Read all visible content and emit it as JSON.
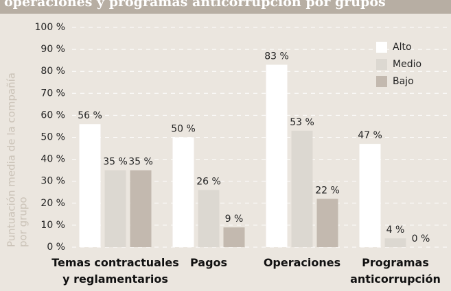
{
  "chart_data": {
    "type": "bar",
    "title": "operaciones y programas anticorrupción por grupos",
    "y_label": [
      "Puntuación media de la compañía",
      "por grupo"
    ],
    "categories": [
      "Temas contractuales\ny reglamentarios",
      "Pagos",
      "Operaciones",
      "Programas\nanticorrupción"
    ],
    "series": [
      {
        "name": "Alto",
        "color": "#ffffff",
        "values": [
          56,
          50,
          83,
          47
        ],
        "value_labels": [
          "56 %",
          "50 %",
          "83 %",
          "47 %"
        ]
      },
      {
        "name": "Medio",
        "color": "#dcd8d1",
        "values": [
          35,
          26,
          53,
          4
        ],
        "value_labels": [
          "35 %",
          "26 %",
          "53 %",
          "4 %"
        ]
      },
      {
        "name": "Bajo",
        "color": "#c3b9af",
        "values": [
          35,
          9,
          22,
          0
        ],
        "value_labels": [
          "35 %",
          "9 %",
          "22 %",
          "0 %"
        ]
      }
    ],
    "ylim": [
      0,
      100
    ],
    "yticks": [
      {
        "value": 0,
        "label": "0 %"
      },
      {
        "value": 10,
        "label": "10 %"
      },
      {
        "value": 20,
        "label": "20 %"
      },
      {
        "value": 30,
        "label": "30 %"
      },
      {
        "value": 40,
        "label": "40 %"
      },
      {
        "value": 50,
        "label": "50 %"
      },
      {
        "value": 60,
        "label": "60 %"
      },
      {
        "value": 70,
        "label": "70 %"
      },
      {
        "value": 80,
        "label": "80 %"
      },
      {
        "value": 90,
        "label": "90 %"
      },
      {
        "value": 100,
        "label": "100 %"
      }
    ],
    "grid": true,
    "legend": "top-right"
  }
}
